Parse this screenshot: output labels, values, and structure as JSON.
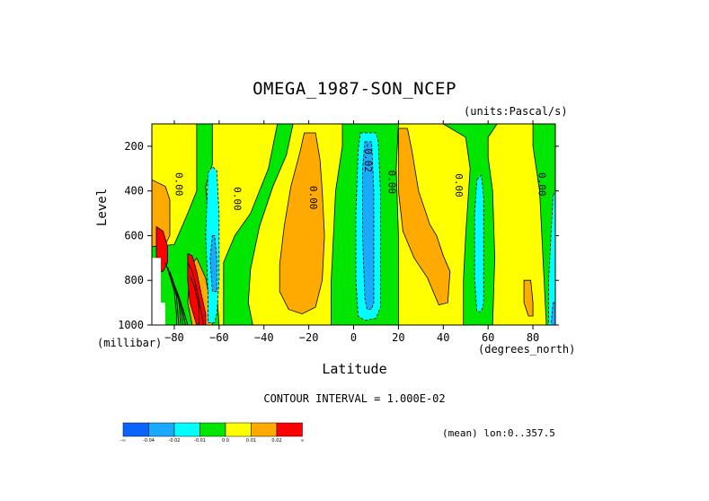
{
  "chart_data": {
    "type": "heatmap",
    "title": "OMEGA_1987-SON_NCEP",
    "units": "(units:Pascal/s)",
    "xlabel": "Latitude",
    "x_unit_label": "(degrees_north)",
    "ylabel": "Level",
    "y_unit_label": "(millibar)",
    "xlim": [
      -90,
      90
    ],
    "ylim": [
      1000,
      100
    ],
    "x_ticks": [
      -80,
      -60,
      -40,
      -20,
      0,
      20,
      40,
      60,
      80
    ],
    "x_tick_labels": [
      "−80",
      "−60",
      "−40",
      "−20",
      "0",
      "20",
      "40",
      "60",
      "80"
    ],
    "y_ticks": [
      200,
      400,
      600,
      800,
      1000
    ],
    "y_tick_labels": [
      "200",
      "400",
      "600",
      "800",
      "1000"
    ],
    "contour_interval_text": "CONTOUR INTERVAL = 1.000E-02",
    "footer_text": "(mean) lon:0..357.5",
    "contour_labels": [
      {
        "x": -78,
        "y": 370,
        "text": "0.00"
      },
      {
        "x": -52,
        "y": 435,
        "text": "0.00"
      },
      {
        "x": -18,
        "y": 430,
        "text": "0.00"
      },
      {
        "x": 6.5,
        "y": 250,
        "text": "-0.02"
      },
      {
        "x": 17,
        "y": 360,
        "text": "0.00"
      },
      {
        "x": 47,
        "y": 375,
        "text": "0.00"
      },
      {
        "x": 84,
        "y": 370,
        "text": "0.00"
      }
    ],
    "colorbar": {
      "colors": [
        "#0a64ff",
        "#19aaff",
        "#00ffff",
        "#00e600",
        "#ffff00",
        "#ffaa00",
        "#ff0000"
      ],
      "labels": [
        "-∞",
        "-0.04",
        "-0.02",
        "-0.01",
        "0.0",
        "0.01",
        "0.02",
        "∞"
      ]
    },
    "regions": [
      {
        "level": "positive",
        "color": "#ffff00",
        "pts": [
          [
            -90,
            100
          ],
          [
            -70,
            100
          ],
          [
            -70,
            400
          ],
          [
            -74,
            500
          ],
          [
            -80,
            640
          ],
          [
            -90,
            650
          ]
        ]
      },
      {
        "level": "positive",
        "color": "#ffff00",
        "pts": [
          [
            -63,
            100
          ],
          [
            -34,
            100
          ],
          [
            -38,
            300
          ],
          [
            -46,
            500
          ],
          [
            -53,
            600
          ],
          [
            -58,
            720
          ],
          [
            -58,
            1000
          ],
          [
            -60,
            1000
          ],
          [
            -62,
            700
          ],
          [
            -65,
            500
          ],
          [
            -66,
            380
          ],
          [
            -63,
            280
          ]
        ]
      },
      {
        "level": "positive",
        "color": "#ffff00",
        "pts": [
          [
            -27,
            100
          ],
          [
            -5,
            100
          ],
          [
            -5,
            200
          ],
          [
            -8,
            400
          ],
          [
            -9,
            600
          ],
          [
            -10,
            800
          ],
          [
            -10,
            1000
          ],
          [
            -45,
            1000
          ],
          [
            -47,
            900
          ],
          [
            -46,
            750
          ],
          [
            -42,
            560
          ],
          [
            -36,
            380
          ],
          [
            -30,
            240
          ]
        ]
      },
      {
        "level": "positive",
        "color": "#ffff00",
        "pts": [
          [
            20,
            100
          ],
          [
            40,
            100
          ],
          [
            50,
            160
          ],
          [
            52,
            300
          ],
          [
            50,
            600
          ],
          [
            49,
            800
          ],
          [
            49,
            1000
          ],
          [
            20,
            1000
          ],
          [
            20,
            600
          ],
          [
            19,
            300
          ]
        ]
      },
      {
        "level": "positive",
        "color": "#ffff00",
        "pts": [
          [
            64,
            100
          ],
          [
            80,
            100
          ],
          [
            80,
            200
          ],
          [
            83,
            400
          ],
          [
            84,
            600
          ],
          [
            85,
            800
          ],
          [
            86,
            1000
          ],
          [
            62,
            1000
          ],
          [
            63,
            700
          ],
          [
            62,
            400
          ],
          [
            60,
            250
          ],
          [
            60,
            160
          ]
        ]
      },
      {
        "level": "0.01",
        "color": "#ffaa00",
        "pts": [
          [
            -90,
            350
          ],
          [
            -84,
            380
          ],
          [
            -82,
            440
          ],
          [
            -82,
            600
          ],
          [
            -84,
            640
          ],
          [
            -90,
            650
          ]
        ]
      },
      {
        "level": "0.01",
        "color": "#ffaa00",
        "pts": [
          [
            -73,
            740
          ],
          [
            -70,
            700
          ],
          [
            -66,
            790
          ],
          [
            -64,
            900
          ],
          [
            -63,
            1000
          ],
          [
            -72,
            1000
          ],
          [
            -74,
            900
          ]
        ]
      },
      {
        "level": "0.01",
        "color": "#ffaa00",
        "pts": [
          [
            -22,
            140
          ],
          [
            -17,
            140
          ],
          [
            -15,
            260
          ],
          [
            -14,
            400
          ],
          [
            -13,
            600
          ],
          [
            -14,
            800
          ],
          [
            -17,
            920
          ],
          [
            -23,
            950
          ],
          [
            -29,
            930
          ],
          [
            -33,
            850
          ],
          [
            -33,
            730
          ],
          [
            -31,
            560
          ],
          [
            -28,
            380
          ],
          [
            -24,
            230
          ]
        ]
      },
      {
        "level": "0.01",
        "color": "#ffaa00",
        "pts": [
          [
            20,
            120
          ],
          [
            24,
            120
          ],
          [
            26,
            220
          ],
          [
            29,
            400
          ],
          [
            34,
            550
          ],
          [
            37,
            600
          ],
          [
            40,
            690
          ],
          [
            43,
            760
          ],
          [
            42,
            900
          ],
          [
            38,
            910
          ],
          [
            33,
            790
          ],
          [
            27,
            700
          ],
          [
            22,
            580
          ],
          [
            20,
            400
          ]
        ]
      },
      {
        "level": "0.01",
        "color": "#ffaa00",
        "pts": [
          [
            76,
            800
          ],
          [
            79,
            800
          ],
          [
            80,
            900
          ],
          [
            80,
            960
          ],
          [
            78,
            960
          ],
          [
            76,
            900
          ]
        ]
      },
      {
        "level": "0.02",
        "color": "#ff0000",
        "pts": [
          [
            -88,
            560
          ],
          [
            -85,
            580
          ],
          [
            -83,
            650
          ],
          [
            -83,
            720
          ],
          [
            -85,
            760
          ],
          [
            -88,
            760
          ]
        ]
      },
      {
        "level": "0.02",
        "color": "#ff0000",
        "pts": [
          [
            -74,
            680
          ],
          [
            -72,
            690
          ],
          [
            -70,
            760
          ],
          [
            -68,
            860
          ],
          [
            -66,
            950
          ],
          [
            -66,
            1000
          ],
          [
            -70,
            1000
          ],
          [
            -73,
            900
          ],
          [
            -74,
            800
          ]
        ]
      },
      {
        "level": "-0.01",
        "color": "#00ffff",
        "pts": [
          [
            -65,
            320
          ],
          [
            -63,
            290
          ],
          [
            -61,
            310
          ],
          [
            -60,
            500
          ],
          [
            -60,
            800
          ],
          [
            -61,
            950
          ],
          [
            -62,
            990
          ],
          [
            -65,
            990
          ],
          [
            -65,
            850
          ],
          [
            -66,
            600
          ]
        ]
      },
      {
        "level": "-0.01",
        "color": "#00ffff",
        "pts": [
          [
            3,
            140
          ],
          [
            10,
            140
          ],
          [
            11,
            180
          ],
          [
            12,
            400
          ],
          [
            12,
            700
          ],
          [
            12,
            920
          ],
          [
            10,
            970
          ],
          [
            5,
            980
          ],
          [
            2,
            960
          ],
          [
            1,
            800
          ],
          [
            1,
            500
          ],
          [
            2,
            220
          ]
        ]
      },
      {
        "level": "-0.01",
        "color": "#00ffff",
        "pts": [
          [
            55,
            350
          ],
          [
            57,
            330
          ],
          [
            58,
            430
          ],
          [
            58,
            700
          ],
          [
            58,
            900
          ],
          [
            57,
            940
          ],
          [
            55,
            940
          ],
          [
            54,
            800
          ],
          [
            54,
            500
          ]
        ]
      },
      {
        "level": "-0.01",
        "color": "#00ffff",
        "pts": [
          [
            89,
            420
          ],
          [
            90,
            400
          ],
          [
            90,
            1000
          ],
          [
            87,
            1000
          ],
          [
            87,
            800
          ]
        ]
      },
      {
        "level": "-0.02",
        "color": "#19aaff",
        "pts": [
          [
            5,
            180
          ],
          [
            8,
            180
          ],
          [
            9,
            400
          ],
          [
            9,
            700
          ],
          [
            9,
            900
          ],
          [
            8,
            930
          ],
          [
            6,
            930
          ],
          [
            5,
            880
          ],
          [
            4,
            600
          ],
          [
            4,
            300
          ]
        ]
      },
      {
        "level": "-0.02",
        "color": "#19aaff",
        "pts": [
          [
            -63,
            600
          ],
          [
            -62,
            600
          ],
          [
            -61,
            700
          ],
          [
            -61,
            850
          ],
          [
            -63,
            850
          ],
          [
            -64,
            700
          ]
        ]
      },
      {
        "level": "-0.02",
        "color": "#19aaff",
        "pts": [
          [
            89,
            900
          ],
          [
            90,
            900
          ],
          [
            90,
            1000
          ],
          [
            88,
            1000
          ]
        ]
      },
      {
        "level": "missing",
        "color": "#ffffff",
        "pts": [
          [
            -90,
            700
          ],
          [
            -86,
            700
          ],
          [
            -86,
            900
          ],
          [
            -84,
            900
          ],
          [
            -84,
            1000
          ],
          [
            -90,
            1000
          ]
        ]
      }
    ],
    "contour_lines": [
      [
        [
          -84,
          720
        ],
        [
          -82,
          780
        ],
        [
          -80,
          850
        ],
        [
          -79,
          950
        ],
        [
          -79,
          1000
        ]
      ],
      [
        [
          -83,
          740
        ],
        [
          -81,
          800
        ],
        [
          -79,
          870
        ],
        [
          -78,
          1000
        ]
      ],
      [
        [
          -82,
          760
        ],
        [
          -80,
          820
        ],
        [
          -78,
          890
        ],
        [
          -77,
          1000
        ]
      ],
      [
        [
          -81,
          790
        ],
        [
          -79,
          850
        ],
        [
          -77,
          930
        ],
        [
          -76,
          1000
        ]
      ],
      [
        [
          -80,
          820
        ],
        [
          -78,
          870
        ],
        [
          -76,
          950
        ],
        [
          -75,
          1000
        ]
      ],
      [
        [
          -79,
          850
        ],
        [
          -77,
          900
        ],
        [
          -75,
          1000
        ]
      ],
      [
        [
          -78,
          880
        ],
        [
          -76,
          930
        ],
        [
          -74,
          1000
        ]
      ],
      [
        [
          -74,
          720
        ],
        [
          -72,
          760
        ],
        [
          -70,
          840
        ],
        [
          -68,
          940
        ],
        [
          -67,
          1000
        ]
      ],
      [
        [
          -73,
          780
        ],
        [
          -71,
          830
        ],
        [
          -69,
          920
        ],
        [
          -69,
          1000
        ]
      ]
    ]
  }
}
